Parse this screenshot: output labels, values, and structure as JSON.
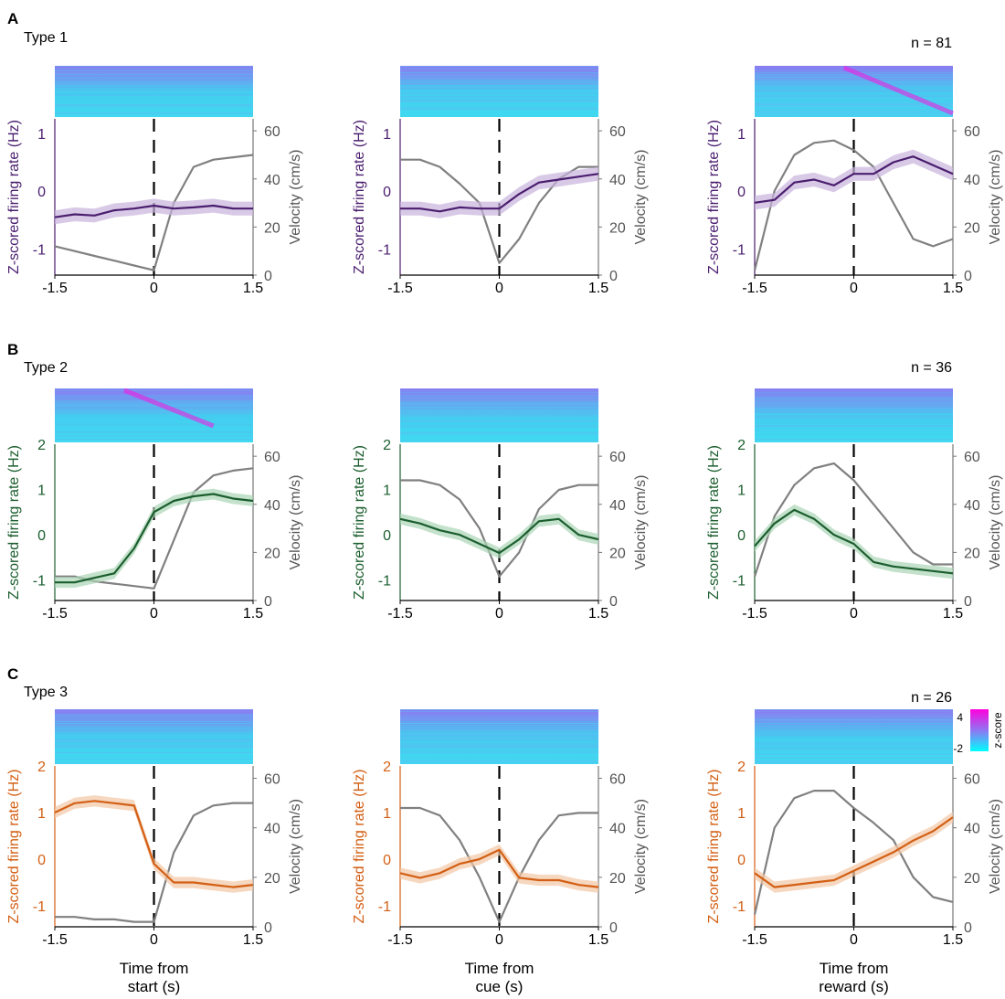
{
  "figure": {
    "xlabels": [
      "Time from\nstart (s)",
      "Time from\ncue (s)",
      "Time from\nreward (s)"
    ],
    "xticks": [
      "-1.5",
      "0",
      "1.5"
    ],
    "left_ylabel": "Z-scored firing rate (Hz)",
    "right_ylabel": "Velocity (cm/s)",
    "right_yticks": [
      "0",
      "20",
      "40",
      "60"
    ],
    "colorbar": {
      "label": "z-score",
      "max": "4",
      "min": "-2"
    }
  },
  "chart_data": [
    {
      "type": "line",
      "panel": "A",
      "title": "Type 1",
      "n_label": "n = 81",
      "color": "#4a1d6e",
      "band_color": "#c7b3dd",
      "heatmap_top": "#8f75f2",
      "heatmap_bottom": "#40d8f0",
      "heatmap_diag": [
        false,
        false,
        true
      ],
      "yticks": [
        "-1",
        "0",
        "1"
      ],
      "ylim": [
        -1.45,
        1.25
      ],
      "vlim": [
        0,
        65
      ],
      "x": [
        -1.5,
        -1.2,
        -0.9,
        -0.6,
        -0.3,
        0,
        0.3,
        0.6,
        0.9,
        1.2,
        1.5
      ],
      "series": [
        {
          "name": "firing",
          "values": [
            [
              -0.45,
              -0.4,
              -0.42,
              -0.33,
              -0.3,
              -0.25,
              -0.3,
              -0.28,
              -0.25,
              -0.3,
              -0.3
            ],
            [
              -0.3,
              -0.3,
              -0.35,
              -0.28,
              -0.3,
              -0.3,
              -0.05,
              0.15,
              0.2,
              0.25,
              0.3
            ],
            [
              -0.2,
              -0.15,
              0.15,
              0.2,
              0.1,
              0.3,
              0.3,
              0.5,
              0.6,
              0.45,
              0.3
            ]
          ]
        },
        {
          "name": "velocity",
          "values": [
            [
              12,
              10,
              8,
              6,
              4,
              2,
              30,
              45,
              48,
              49,
              50
            ],
            [
              48,
              48,
              45,
              38,
              30,
              5,
              15,
              30,
              40,
              45,
              45
            ],
            [
              2,
              35,
              50,
              55,
              56,
              52,
              45,
              30,
              15,
              12,
              15
            ]
          ]
        }
      ]
    },
    {
      "type": "line",
      "panel": "B",
      "title": "Type 2",
      "n_label": "n = 36",
      "color": "#1b5e2e",
      "band_color": "#a9d4b5",
      "heatmap_top": "#8f75f2",
      "heatmap_bottom": "#40d8f0",
      "heatmap_diag": [
        true,
        false,
        false
      ],
      "yticks": [
        "-1",
        "0",
        "1",
        "2"
      ],
      "ylim": [
        -1.45,
        2.0
      ],
      "vlim": [
        0,
        65
      ],
      "x": [
        -1.5,
        -1.2,
        -0.9,
        -0.6,
        -0.3,
        0,
        0.3,
        0.6,
        0.9,
        1.2,
        1.5
      ],
      "series": [
        {
          "name": "firing",
          "values": [
            [
              -1.05,
              -1.05,
              -0.95,
              -0.85,
              -0.3,
              0.5,
              0.75,
              0.85,
              0.9,
              0.8,
              0.75
            ],
            [
              0.35,
              0.25,
              0.1,
              0.0,
              -0.2,
              -0.4,
              -0.1,
              0.3,
              0.35,
              0.0,
              -0.1
            ],
            [
              -0.25,
              0.25,
              0.55,
              0.35,
              0.0,
              -0.2,
              -0.6,
              -0.7,
              -0.75,
              -0.8,
              -0.85
            ]
          ]
        },
        {
          "name": "velocity",
          "values": [
            [
              10,
              10,
              8,
              7,
              6,
              5,
              25,
              45,
              52,
              54,
              55
            ],
            [
              50,
              50,
              48,
              42,
              30,
              10,
              20,
              38,
              46,
              48,
              48
            ],
            [
              10,
              35,
              48,
              55,
              57,
              50,
              40,
              30,
              20,
              15,
              15
            ]
          ]
        }
      ]
    },
    {
      "type": "line",
      "panel": "C",
      "title": "Type 3",
      "n_label": "n = 26",
      "color": "#d35f14",
      "band_color": "#f2c6a4",
      "heatmap_top": "#8f75f2",
      "heatmap_bottom": "#40d8f0",
      "heatmap_diag": [
        false,
        false,
        false
      ],
      "yticks": [
        "-1",
        "0",
        "1",
        "2"
      ],
      "ylim": [
        -1.45,
        2.0
      ],
      "vlim": [
        0,
        65
      ],
      "x": [
        -1.5,
        -1.2,
        -0.9,
        -0.6,
        -0.3,
        0,
        0.3,
        0.6,
        0.9,
        1.2,
        1.5
      ],
      "series": [
        {
          "name": "firing",
          "values": [
            [
              1.0,
              1.2,
              1.25,
              1.2,
              1.15,
              -0.1,
              -0.5,
              -0.5,
              -0.55,
              -0.6,
              -0.55
            ],
            [
              -0.3,
              -0.4,
              -0.3,
              -0.1,
              0.0,
              0.2,
              -0.4,
              -0.45,
              -0.45,
              -0.55,
              -0.6
            ],
            [
              -0.3,
              -0.6,
              -0.55,
              -0.5,
              -0.45,
              -0.25,
              -0.05,
              0.15,
              0.4,
              0.6,
              0.9
            ]
          ]
        },
        {
          "name": "velocity",
          "values": [
            [
              4,
              4,
              3,
              3,
              2,
              2,
              30,
              45,
              49,
              50,
              50
            ],
            [
              48,
              48,
              45,
              35,
              20,
              2,
              20,
              35,
              45,
              46,
              46
            ],
            [
              5,
              40,
              52,
              55,
              55,
              48,
              42,
              35,
              20,
              12,
              10
            ]
          ]
        }
      ]
    }
  ]
}
